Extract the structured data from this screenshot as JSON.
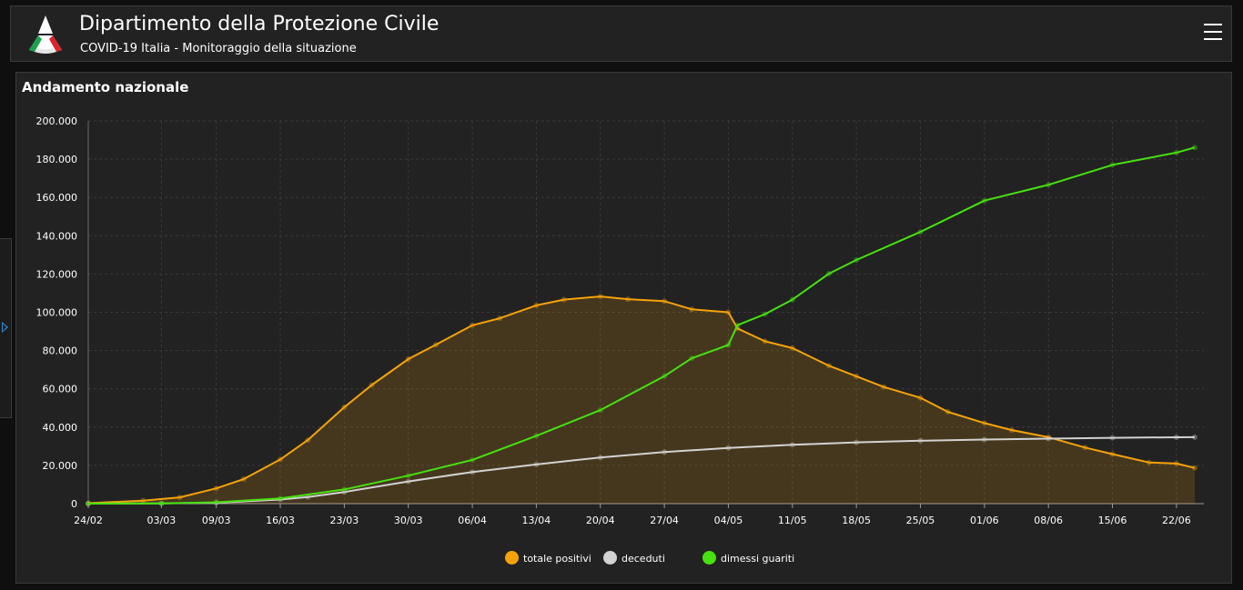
{
  "header": {
    "title": "Dipartimento della Protezione Civile",
    "subtitle": "COVID-19 Italia - Monitoraggio della situazione",
    "menu_icon": "hamburger-menu-icon",
    "logo_icon": "protezione-civile-logo-icon"
  },
  "panel": {
    "title": "Andamento nazionale"
  },
  "colors": {
    "positivi": "#f5a20a",
    "deceduti": "#d2d2d2",
    "guariti": "#46e10f",
    "background": "#222222",
    "grid": "#3a3a3a"
  },
  "chart_data": {
    "type": "line",
    "title": "Andamento nazionale",
    "xlabel": "",
    "ylabel": "",
    "ylim": [
      0,
      200000
    ],
    "yticks": [
      "0",
      "20.000",
      "40.000",
      "60.000",
      "80.000",
      "100.000",
      "120.000",
      "140.000",
      "160.000",
      "180.000",
      "200.000"
    ],
    "xticks": [
      "24/02",
      "03/03",
      "09/03",
      "16/03",
      "23/03",
      "30/03",
      "06/04",
      "13/04",
      "20/04",
      "27/04",
      "04/05",
      "11/05",
      "18/05",
      "25/05",
      "01/06",
      "08/06",
      "15/06",
      "22/06"
    ],
    "grid": true,
    "legend_position": "bottom",
    "series": [
      {
        "name": "totale positivi",
        "key": "positivi",
        "fill": true,
        "points": [
          [
            "24/02",
            221
          ],
          [
            "01/03",
            1577
          ],
          [
            "05/03",
            3296
          ],
          [
            "09/03",
            7985
          ],
          [
            "12/03",
            12839
          ],
          [
            "16/03",
            23073
          ],
          [
            "19/03",
            33190
          ],
          [
            "23/03",
            50418
          ],
          [
            "26/03",
            62013
          ],
          [
            "30/03",
            75528
          ],
          [
            "02/04",
            83049
          ],
          [
            "06/04",
            93187
          ],
          [
            "09/04",
            96877
          ],
          [
            "13/04",
            103616
          ],
          [
            "16/04",
            106607
          ],
          [
            "20/04",
            108257
          ],
          [
            "23/04",
            106848
          ],
          [
            "27/04",
            105813
          ],
          [
            "30/04",
            101551
          ],
          [
            "04/05",
            99980
          ],
          [
            "05/05",
            91528
          ],
          [
            "08/05",
            84842
          ],
          [
            "11/05",
            81266
          ],
          [
            "15/05",
            72070
          ],
          [
            "18/05",
            66553
          ],
          [
            "21/05",
            60960
          ],
          [
            "25/05",
            55300
          ],
          [
            "28/05",
            47986
          ],
          [
            "01/06",
            42075
          ],
          [
            "04/06",
            38429
          ],
          [
            "08/06",
            34730
          ],
          [
            "12/06",
            29300
          ],
          [
            "15/06",
            25909
          ],
          [
            "19/06",
            21543
          ],
          [
            "22/06",
            20972
          ],
          [
            "24/06",
            18655
          ]
        ]
      },
      {
        "name": "deceduti",
        "key": "deceduti",
        "fill": false,
        "points": [
          [
            "24/02",
            7
          ],
          [
            "03/03",
            79
          ],
          [
            "09/03",
            463
          ],
          [
            "16/03",
            2158
          ],
          [
            "19/03",
            3405
          ],
          [
            "23/03",
            6077
          ],
          [
            "30/03",
            11591
          ],
          [
            "06/04",
            16523
          ],
          [
            "13/04",
            20465
          ],
          [
            "20/04",
            24114
          ],
          [
            "27/04",
            26977
          ],
          [
            "04/05",
            29079
          ],
          [
            "11/05",
            30739
          ],
          [
            "18/05",
            32007
          ],
          [
            "25/05",
            32877
          ],
          [
            "01/06",
            33475
          ],
          [
            "08/06",
            33964
          ],
          [
            "15/06",
            34371
          ],
          [
            "22/06",
            34657
          ],
          [
            "24/06",
            34708
          ]
        ]
      },
      {
        "name": "dimessi guariti",
        "key": "guariti",
        "fill": false,
        "points": [
          [
            "24/02",
            1
          ],
          [
            "03/03",
            160
          ],
          [
            "09/03",
            724
          ],
          [
            "16/03",
            2749
          ],
          [
            "23/03",
            7432
          ],
          [
            "30/03",
            14620
          ],
          [
            "06/04",
            22837
          ],
          [
            "13/04",
            35435
          ],
          [
            "20/04",
            48877
          ],
          [
            "27/04",
            66624
          ],
          [
            "30/04",
            75945
          ],
          [
            "04/05",
            82879
          ],
          [
            "05/05",
            93245
          ],
          [
            "08/05",
            99023
          ],
          [
            "11/05",
            106587
          ],
          [
            "15/05",
            120205
          ],
          [
            "18/05",
            127326
          ],
          [
            "25/05",
            141981
          ],
          [
            "01/06",
            158355
          ],
          [
            "08/06",
            166584
          ],
          [
            "15/06",
            177010
          ],
          [
            "22/06",
            183426
          ],
          [
            "24/06",
            186111
          ]
        ]
      }
    ]
  }
}
